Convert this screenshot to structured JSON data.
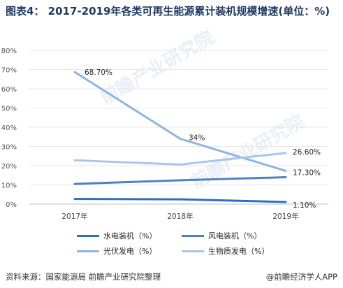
{
  "title": "图表4：  2017-2019年各类可再生能源累计装机规模增速(单位：%)",
  "source": "资料来源：国家能源局 前瞻产业研究院整理",
  "brand": "@前瞻经济学人APP",
  "watermark": "前瞻产业研究院",
  "chart_data": {
    "type": "line",
    "categories": [
      "2017年",
      "2018年",
      "2019年"
    ],
    "ylim": [
      0,
      80
    ],
    "yticks": [
      "0%",
      "10%",
      "20%",
      "30%",
      "40%",
      "50%",
      "60%",
      "70%",
      "80%"
    ],
    "series": [
      {
        "name": "水电装机（%）",
        "values": [
          2.7,
          2.5,
          1.1
        ],
        "color": "#2e6fc0",
        "labels": [
          "",
          "",
          "1.10%"
        ]
      },
      {
        "name": "风电装机（%）",
        "values": [
          10.5,
          12.4,
          14.0
        ],
        "color": "#4f81c7",
        "labels": [
          "",
          "",
          ""
        ]
      },
      {
        "name": "光伏发电（%）",
        "values": [
          68.7,
          34.0,
          17.3
        ],
        "color": "#8eb4e3",
        "labels": [
          "68.70%",
          "34%",
          "17.30%"
        ]
      },
      {
        "name": "生物质发电（%）",
        "values": [
          22.8,
          20.6,
          26.6
        ],
        "color": "#a9c6ea",
        "labels": [
          "",
          "",
          "26.60%"
        ]
      }
    ]
  }
}
